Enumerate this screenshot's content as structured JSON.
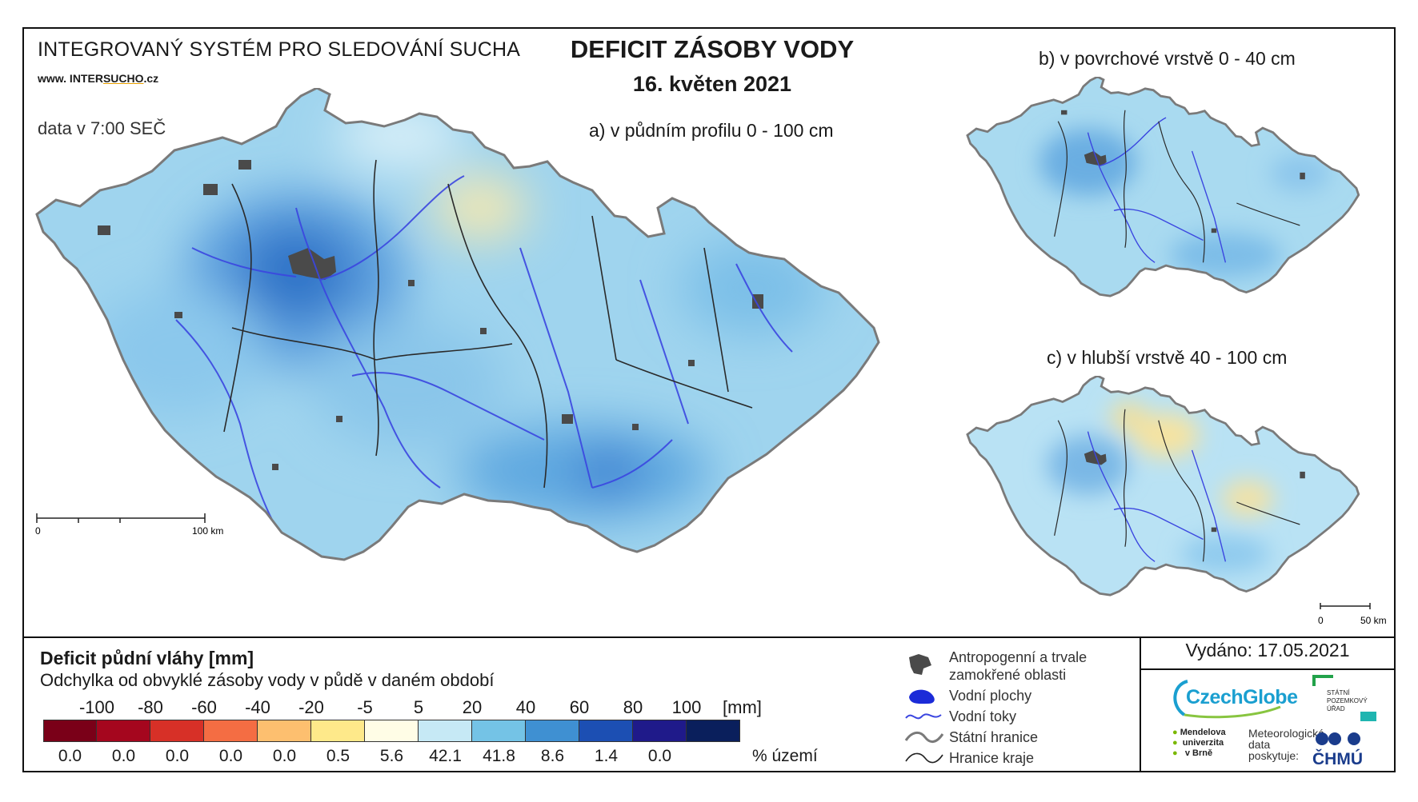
{
  "header": {
    "system_title": "INTEGROVANÝ SYSTÉM PRO SLEDOVÁNÍ SUCHA",
    "website_prefix": "www. INTER",
    "website_brand": "SUCHO",
    "website_suffix": ".cz",
    "data_time": "data v 7:00 SEČ",
    "main_title": "DEFICIT ZÁSOBY VODY",
    "date": "16. květen 2021"
  },
  "maps": {
    "a_label": "a) v půdním profilu 0 - 100 cm",
    "b_label": "b) v povrchové vrstvě 0 - 40 cm",
    "c_label": "c) v hlubší vrstvě 40 - 100 cm",
    "scale_main": {
      "zero": "0",
      "end": "100 km"
    },
    "scale_small": {
      "zero": "0",
      "end": "50 km"
    }
  },
  "legend": {
    "title": "Deficit půdní vláhy  [mm]",
    "subtitle": "Odchylka od obvyklé zásoby vody v půdě v daném období",
    "ticks": [
      "-100",
      "-80",
      "-60",
      "-40",
      "-20",
      "-5",
      "5",
      "20",
      "40",
      "60",
      "80",
      "100"
    ],
    "unit_mm": "[mm]",
    "colors": [
      "#7a0018",
      "#a5061e",
      "#d73027",
      "#f46d43",
      "#fdbf6f",
      "#fee98a",
      "#fffde6",
      "#c6e9f5",
      "#74c3e6",
      "#3f90d2",
      "#1c4fb3",
      "#1f1a8a",
      "#0a1f5c"
    ],
    "percent": [
      "0.0",
      "0.0",
      "0.0",
      "0.0",
      "0.0",
      "0.5",
      "5.6",
      "42.1",
      "41.8",
      "8.6",
      "1.4",
      "0.0"
    ],
    "percent_unit": "% území"
  },
  "symbols": {
    "anthropogenic_1": "Antropogenní a trvale",
    "anthropogenic_2": "zamokřené oblasti",
    "water_bodies": "Vodní plochy",
    "water_streams": "Vodní toky",
    "state_border": "Státní hranice",
    "region_border": "Hranice kraje"
  },
  "footer": {
    "issued": "Vydáno: 17.05.2021",
    "czechglobe": "CzechGlobe",
    "spu_1": "STÁTNÍ",
    "spu_2": "POZEMKOVÝ",
    "spu_3": "ÚŘAD",
    "mendel_1": "Mendelova",
    "mendel_2": "univerzita",
    "mendel_3": "v Brně",
    "meteo_1": "Meteorologická",
    "meteo_2": "data",
    "meteo_3": "poskytuje:",
    "chmu": "ČHMÚ"
  }
}
